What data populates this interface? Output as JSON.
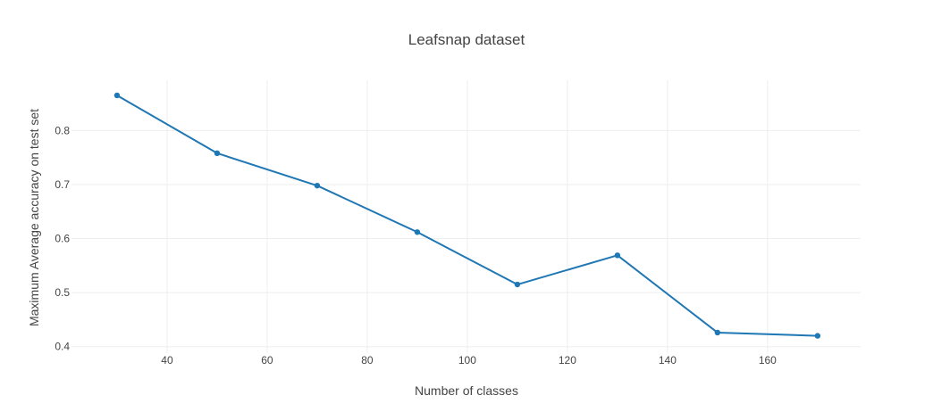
{
  "chart_data": {
    "type": "line",
    "title": "Leafsnap dataset",
    "xlabel": "Number of classes",
    "ylabel": "Maximum Average accuracy on test set",
    "x": [
      30,
      50,
      70,
      90,
      110,
      130,
      150,
      170
    ],
    "series": [
      {
        "name": "Maximum Average accuracy",
        "values": [
          0.865,
          0.758,
          0.698,
          0.612,
          0.515,
          0.569,
          0.426,
          0.42
        ]
      }
    ],
    "xlim": [
      20.9,
      178.6
    ],
    "ylim": [
      0.388,
      0.893
    ],
    "xticks": [
      40,
      60,
      80,
      100,
      120,
      140,
      160
    ],
    "yticks": [
      0.4,
      0.5,
      0.6,
      0.7,
      0.8
    ],
    "grid": true,
    "legend": "none"
  },
  "colors": {
    "line": "#1f77b4",
    "grid": "#eeeeee",
    "text": "#444444"
  }
}
